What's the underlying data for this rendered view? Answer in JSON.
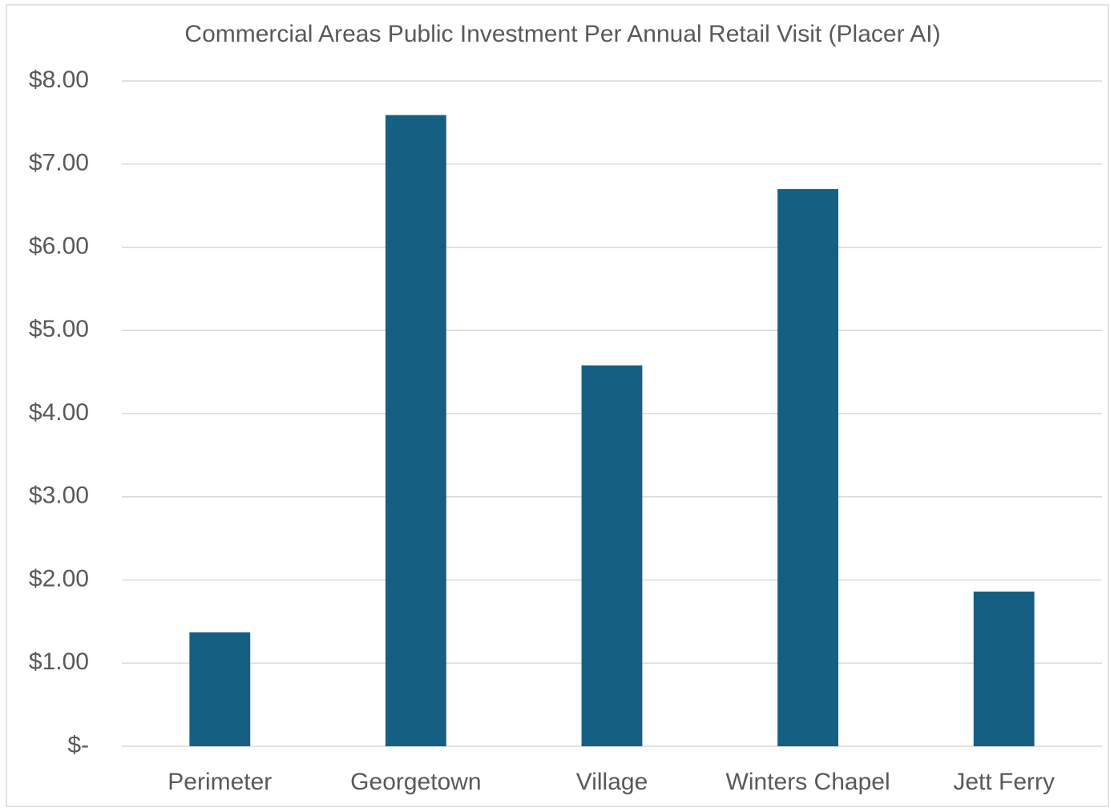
{
  "chart_data": {
    "type": "bar",
    "title": "Commercial Areas Public Investment Per Annual Retail Visit (Placer AI)",
    "categories": [
      "Perimeter",
      "Georgetown",
      "Village",
      "Winters Chapel",
      "Jett Ferry"
    ],
    "values": [
      1.37,
      7.59,
      4.58,
      6.7,
      1.86
    ],
    "color": "#155f82",
    "ylim": [
      0,
      8
    ],
    "yticks": [
      {
        "value": 0,
        "label": "$-"
      },
      {
        "value": 1,
        "label": "$1.00"
      },
      {
        "value": 2,
        "label": "$2.00"
      },
      {
        "value": 3,
        "label": "$3.00"
      },
      {
        "value": 4,
        "label": "$4.00"
      },
      {
        "value": 5,
        "label": "$5.00"
      },
      {
        "value": 6,
        "label": "$6.00"
      },
      {
        "value": 7,
        "label": "$7.00"
      },
      {
        "value": 8,
        "label": "$8.00"
      }
    ],
    "grid": true
  }
}
